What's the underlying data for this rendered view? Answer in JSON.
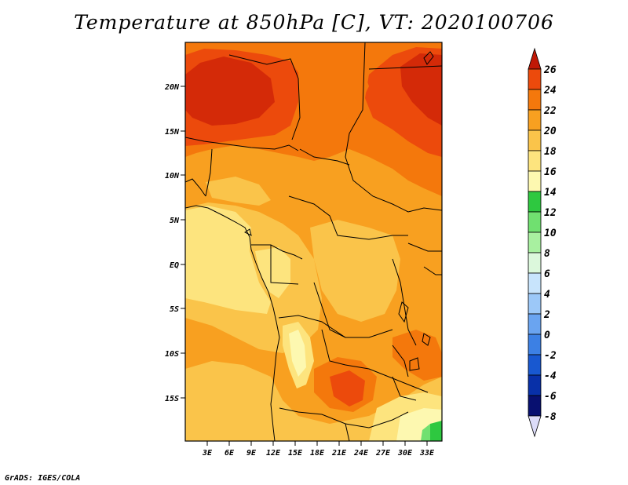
{
  "title": "Temperature at 850hPa [C], VT: 2020100706",
  "credit": "GrADS: IGES/COLA",
  "map": {
    "lat_labels": [
      "20N",
      "15N",
      "10N",
      "5N",
      "EQ",
      "5S",
      "10S",
      "15S"
    ],
    "lon_labels": [
      "3E",
      "6E",
      "9E",
      "12E",
      "15E",
      "18E",
      "21E",
      "24E",
      "27E",
      "30E",
      "33E"
    ]
  },
  "colorbar": {
    "labels": [
      "26",
      "24",
      "22",
      "20",
      "18",
      "16",
      "14",
      "12",
      "10",
      "8",
      "6",
      "4",
      "2",
      "0",
      "-2",
      "-4",
      "-6",
      "-8"
    ],
    "colors": [
      "#d42a08",
      "#ec4a0c",
      "#f4780c",
      "#f8a020",
      "#fac44a",
      "#fde47e",
      "#fdf8b0",
      "#2ec840",
      "#70e070",
      "#a8f0a0",
      "#dcf8dc",
      "#c8e4fc",
      "#9cc8f8",
      "#6aa4f0",
      "#3c80e4",
      "#1858d0",
      "#0830a8",
      "#081070"
    ],
    "top_arrow_color": "#c01806",
    "bottom_arrow_color": "#dcdcf8"
  }
}
